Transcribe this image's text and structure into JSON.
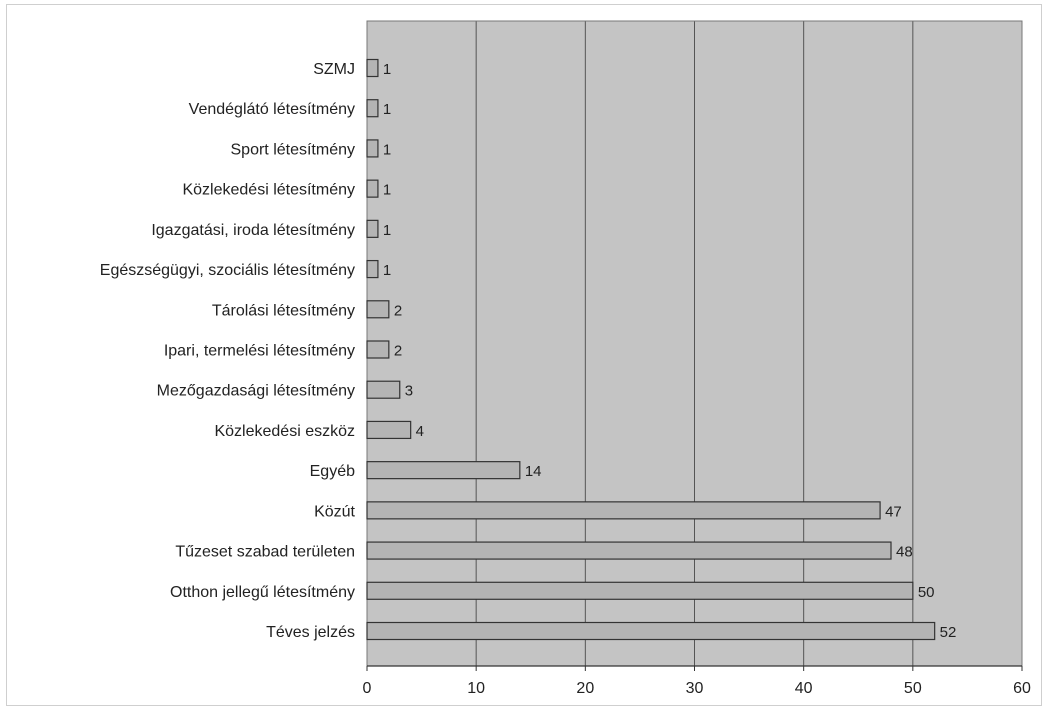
{
  "chart_data": {
    "type": "bar",
    "orientation": "horizontal",
    "title": "",
    "xlabel": "",
    "ylabel": "",
    "categories": [
      "SZMJ",
      "Vendéglátó létesítmény",
      "Sport létesítmény",
      "Közlekedési létesítmény",
      "Igazgatási, iroda létesítmény",
      "Egészségügyi, szociális létesítmény",
      "Tárolási létesítmény",
      "Ipari, termelési létesítmény",
      "Mezőgazdasági létesítmény",
      "Közlekedési eszköz",
      "Egyéb",
      "Közút",
      "Tűzeset szabad területen",
      "Otthon jellegű létesítmény",
      "Téves jelzés"
    ],
    "values": [
      1,
      1,
      1,
      1,
      1,
      1,
      2,
      2,
      3,
      4,
      14,
      47,
      48,
      50,
      52
    ],
    "xlim": [
      0,
      60
    ],
    "xticks": [
      0,
      10,
      20,
      30,
      40,
      50,
      60
    ],
    "grid": true,
    "legend": "none",
    "colors": {
      "plot_background": "#c4c4c4",
      "bar_fill": "#b4b4b4",
      "bar_stroke": "#333333",
      "gridline": "#555555"
    }
  }
}
